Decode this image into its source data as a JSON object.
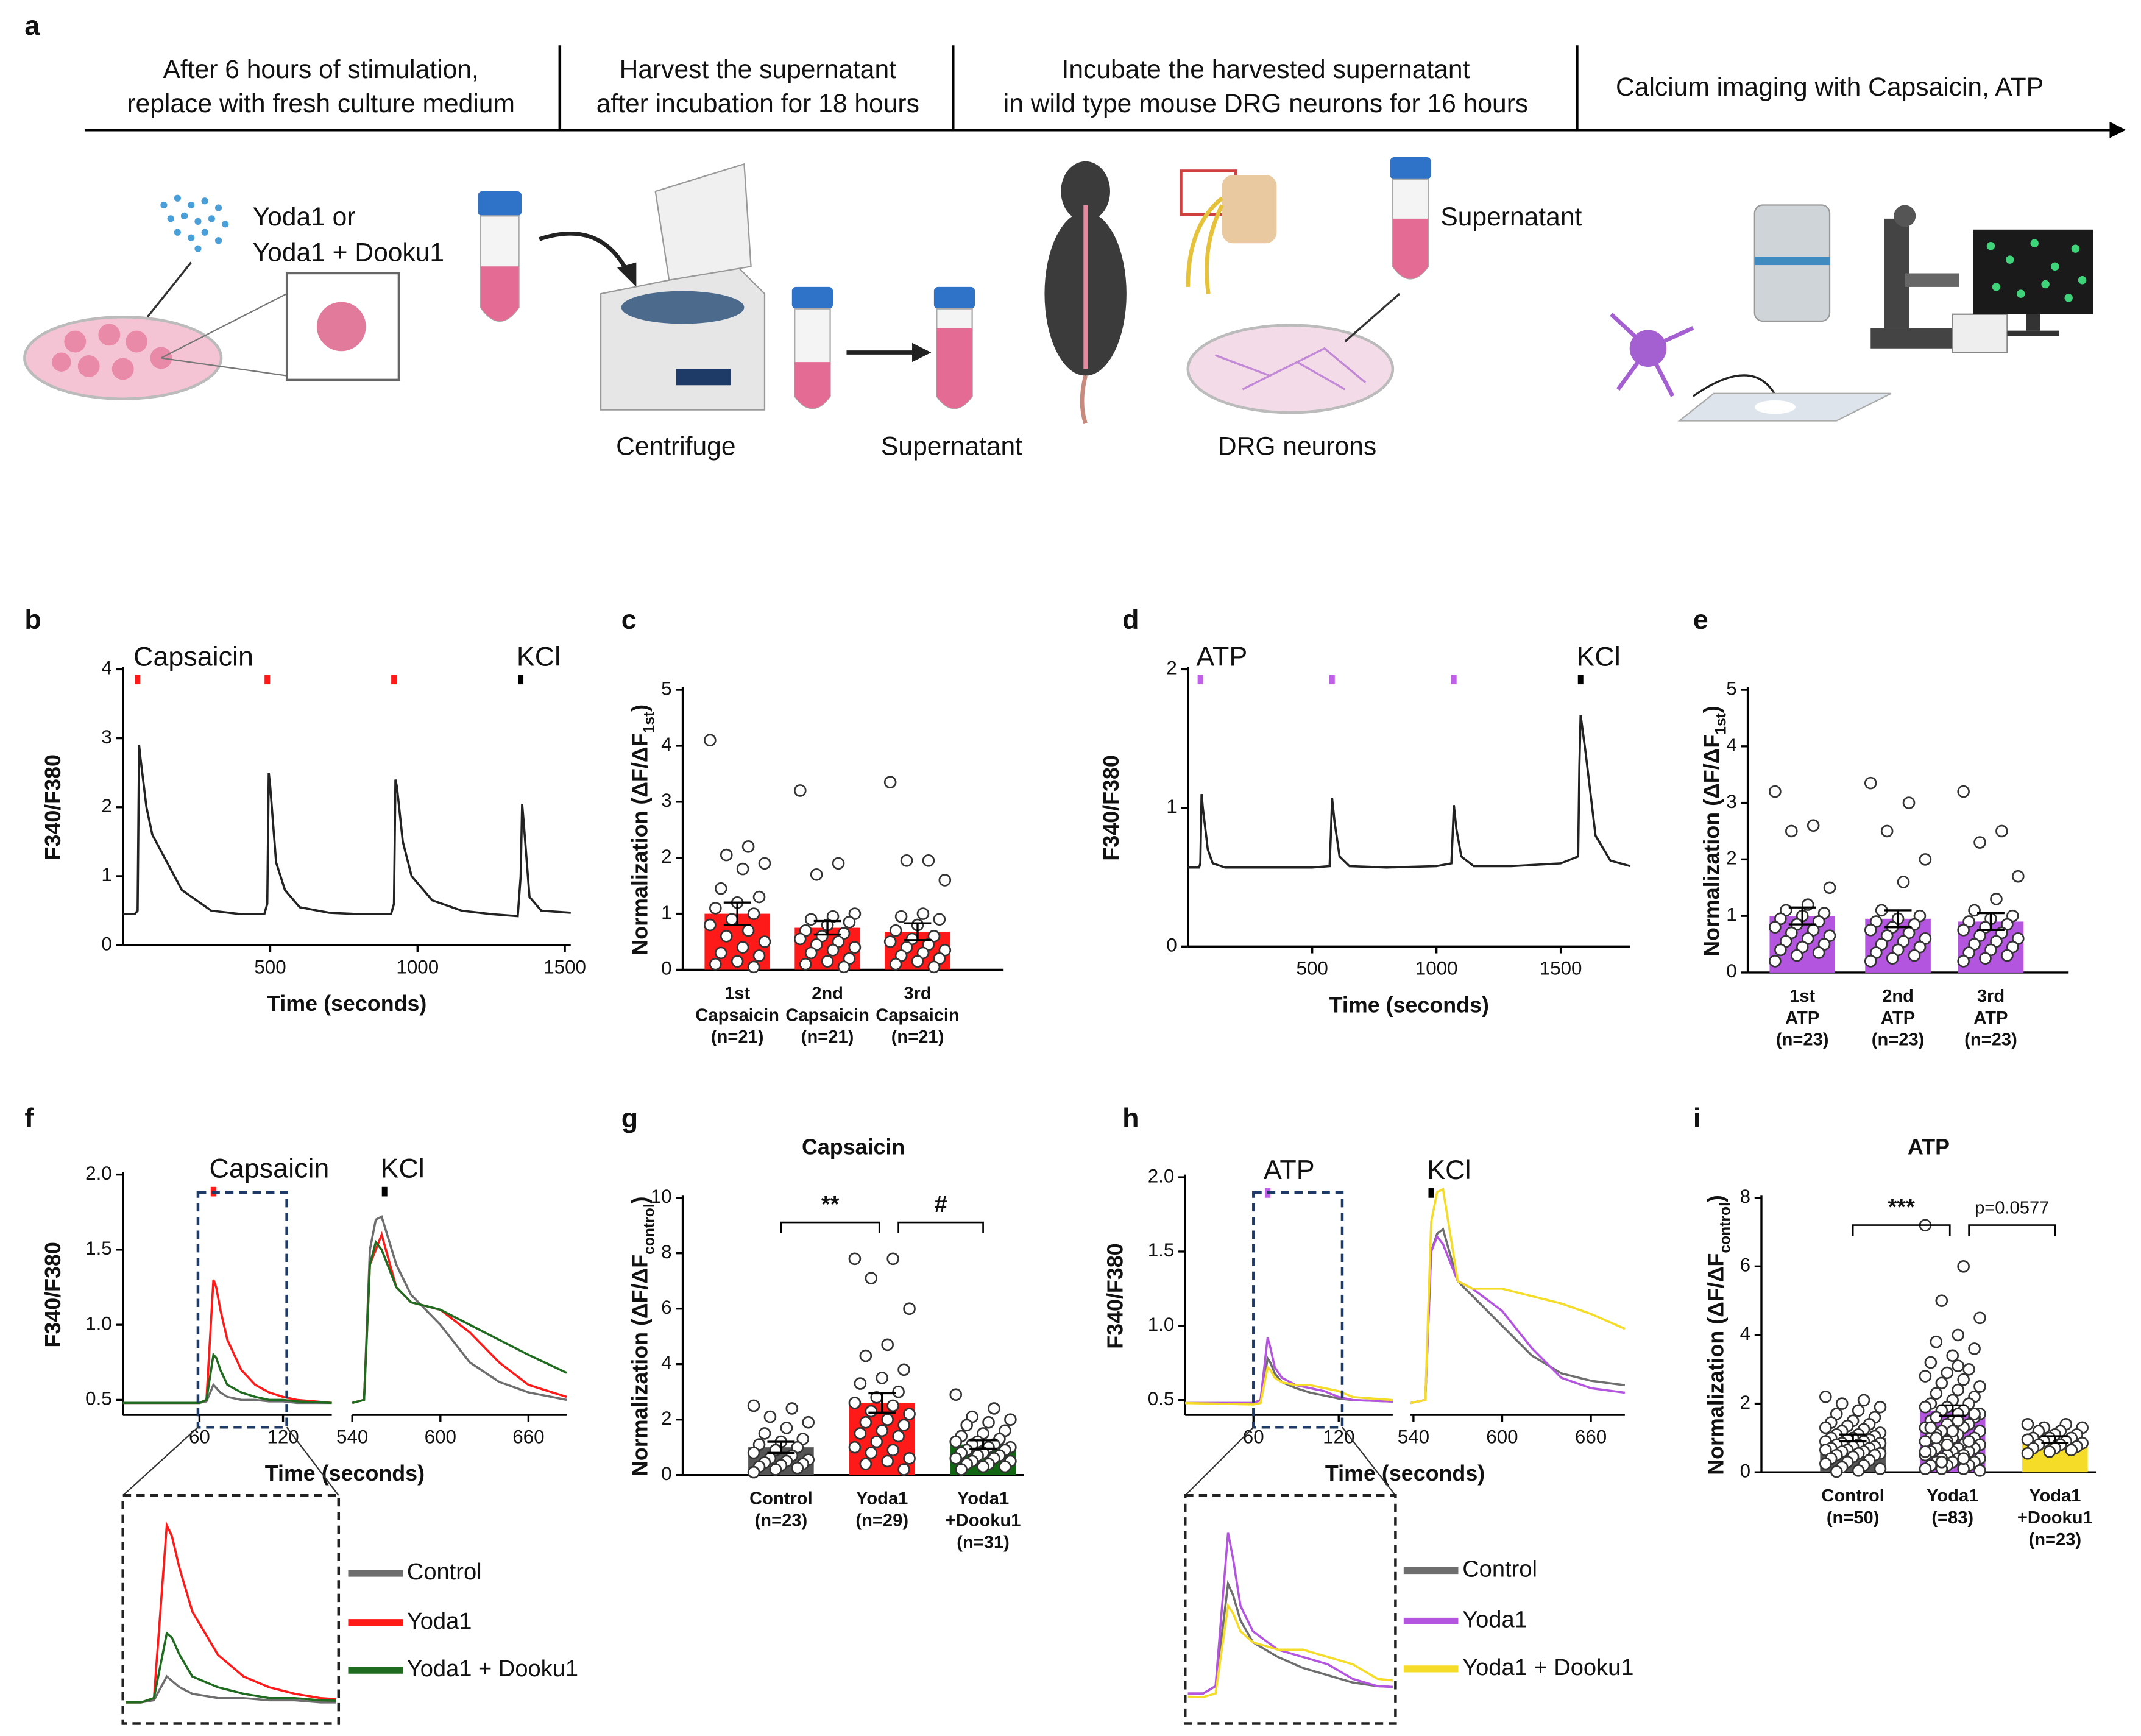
{
  "workflow": {
    "panel": "a",
    "steps": [
      [
        "After 6 hours of stimulation,",
        "replace with fresh culture medium"
      ],
      [
        "Harvest the supernatant",
        "after incubation for 18 hours"
      ],
      [
        "Incubate the harvested supernatant",
        "in wild type mouse DRG neurons for 16 hours"
      ],
      [
        "Calcium imaging with Capsaicin, ATP"
      ]
    ],
    "labels": [
      "Yoda1 or",
      "Yoda1 + Dooku1",
      "Centrifuge",
      "Supernatant",
      "Supernatant",
      "DRG neurons"
    ]
  },
  "chart_data": [
    {
      "type": "line",
      "panel": "b",
      "ylabel": "F340/F380",
      "xlabel": "Time (seconds)",
      "x": [
        0,
        40,
        50,
        55,
        60,
        80,
        100,
        150,
        200,
        300,
        400,
        480,
        490,
        495,
        500,
        520,
        550,
        600,
        700,
        800,
        910,
        920,
        925,
        930,
        950,
        980,
        1050,
        1150,
        1250,
        1340,
        1350,
        1355,
        1360,
        1380,
        1420,
        1520
      ],
      "series": [
        {
          "color": "#222222",
          "values": [
            0.45,
            0.45,
            0.5,
            2.9,
            2.7,
            2.0,
            1.6,
            1.2,
            0.8,
            0.5,
            0.45,
            0.45,
            0.6,
            2.5,
            2.3,
            1.2,
            0.8,
            0.55,
            0.47,
            0.45,
            0.45,
            0.6,
            2.4,
            2.3,
            1.5,
            1.0,
            0.65,
            0.5,
            0.45,
            0.42,
            1.0,
            2.05,
            1.8,
            0.7,
            0.5,
            0.47
          ]
        }
      ],
      "xlim": [
        0,
        1520
      ],
      "xticks": [
        500,
        1000,
        1500
      ],
      "ylim": [
        0,
        4
      ],
      "yticks": [
        0,
        1,
        2,
        3,
        4
      ],
      "stimuli": [
        {
          "label": "Capsaicin",
          "color": "#ff1a1a",
          "x": [
            50,
            490,
            920
          ]
        },
        {
          "label": "KCl",
          "color": "#000000",
          "x": [
            1350
          ]
        }
      ]
    },
    {
      "type": "bar",
      "panel": "c",
      "ylabel": [
        "Normalization (ΔF/ΔF",
        "1st",
        ")"
      ],
      "categories": [
        [
          "1st",
          "Capsaicin",
          "(n=21)"
        ],
        [
          "2nd",
          "Capsaicin",
          "(n=21)"
        ],
        [
          "3rd",
          "Capsaicin",
          "(n=21)"
        ]
      ],
      "values": [
        1.0,
        0.75,
        0.68
      ],
      "errors": [
        0.2,
        0.12,
        0.15
      ],
      "color": "#ff1a1a",
      "points": [
        [
          4.1,
          2.2,
          2.05,
          1.9,
          1.8,
          1.45,
          1.3,
          1.2,
          1.1,
          1.0,
          0.9,
          0.8,
          0.7,
          0.6,
          0.5,
          0.4,
          0.3,
          0.25,
          0.15,
          0.1,
          0.05
        ],
        [
          3.2,
          1.9,
          1.7,
          1.0,
          0.95,
          0.9,
          0.85,
          0.8,
          0.7,
          0.65,
          0.6,
          0.55,
          0.5,
          0.45,
          0.4,
          0.35,
          0.3,
          0.2,
          0.15,
          0.1,
          0.05
        ],
        [
          3.35,
          1.95,
          1.95,
          1.6,
          1.0,
          0.95,
          0.9,
          0.8,
          0.7,
          0.6,
          0.55,
          0.5,
          0.45,
          0.4,
          0.35,
          0.3,
          0.25,
          0.2,
          0.15,
          0.1,
          0.05
        ]
      ],
      "ylim": [
        0,
        5
      ],
      "yticks": [
        0,
        1,
        2,
        3,
        4,
        5
      ]
    },
    {
      "type": "line",
      "panel": "d",
      "ylabel": "F340/F380",
      "xlabel": "Time (seconds)",
      "x": [
        0,
        45,
        50,
        55,
        60,
        80,
        100,
        150,
        300,
        500,
        570,
        575,
        580,
        590,
        610,
        650,
        800,
        1000,
        1060,
        1065,
        1070,
        1080,
        1100,
        1150,
        1300,
        1500,
        1570,
        1575,
        1580,
        1600,
        1640,
        1700,
        1780
      ],
      "series": [
        {
          "color": "#222222",
          "values": [
            0.57,
            0.57,
            0.6,
            1.1,
            1.0,
            0.7,
            0.6,
            0.57,
            0.57,
            0.57,
            0.58,
            0.8,
            1.07,
            0.9,
            0.65,
            0.58,
            0.57,
            0.58,
            0.6,
            0.8,
            1.02,
            0.85,
            0.65,
            0.58,
            0.58,
            0.6,
            0.65,
            1.3,
            1.67,
            1.4,
            0.8,
            0.62,
            0.58
          ]
        }
      ],
      "xlim": [
        0,
        1780
      ],
      "xticks": [
        500,
        1000,
        1500
      ],
      "ylim": [
        0,
        2
      ],
      "yticks": [
        0,
        1,
        2
      ],
      "stimuli": [
        {
          "label": "ATP",
          "color": "#c060e8",
          "x": [
            50,
            580,
            1070
          ]
        },
        {
          "label": "KCl",
          "color": "#000000",
          "x": [
            1580
          ]
        }
      ]
    },
    {
      "type": "bar",
      "panel": "e",
      "ylabel": [
        "Normalization (ΔF/ΔF",
        "1st",
        ")"
      ],
      "categories": [
        [
          "1st",
          "ATP",
          "(n=23)"
        ],
        [
          "2nd",
          "ATP",
          "(n=23)"
        ],
        [
          "3rd",
          "ATP",
          "(n=23)"
        ]
      ],
      "values": [
        1.0,
        0.95,
        0.9
      ],
      "errors": [
        0.15,
        0.15,
        0.15
      ],
      "color": "#b455e0",
      "points": [
        [
          3.2,
          2.6,
          2.5,
          1.5,
          1.2,
          1.1,
          1.05,
          1.0,
          0.95,
          0.9,
          0.85,
          0.8,
          0.75,
          0.7,
          0.65,
          0.6,
          0.55,
          0.5,
          0.45,
          0.4,
          0.35,
          0.3,
          0.2
        ],
        [
          3.35,
          3.0,
          2.5,
          2.0,
          1.6,
          1.1,
          1.0,
          0.95,
          0.9,
          0.85,
          0.8,
          0.75,
          0.7,
          0.65,
          0.6,
          0.55,
          0.5,
          0.45,
          0.4,
          0.35,
          0.3,
          0.25,
          0.2
        ],
        [
          3.2,
          2.5,
          2.3,
          1.7,
          1.3,
          1.1,
          1.0,
          0.95,
          0.9,
          0.85,
          0.8,
          0.75,
          0.7,
          0.65,
          0.6,
          0.55,
          0.5,
          0.45,
          0.4,
          0.35,
          0.3,
          0.25,
          0.2
        ]
      ],
      "ylim": [
        0,
        5
      ],
      "yticks": [
        0,
        1,
        2,
        3,
        4,
        5
      ]
    },
    {
      "type": "line",
      "panel": "f",
      "ylabel": "F340/F380",
      "xlabel": "Time (seconds)",
      "x": [
        [
          5,
          60,
          65,
          70,
          72,
          75,
          80,
          90,
          100,
          110,
          120,
          130,
          155
        ],
        [
          540,
          548,
          552,
          556,
          560,
          570,
          580,
          600,
          620,
          640,
          660,
          686
        ]
      ],
      "series": [
        {
          "name": "Control",
          "color": "#6e6e6e",
          "values": [
            [
              0.48,
              0.48,
              0.49,
              0.6,
              0.58,
              0.55,
              0.52,
              0.5,
              0.5,
              0.49,
              0.49,
              0.48,
              0.48
            ],
            [
              0.48,
              0.5,
              1.5,
              1.7,
              1.72,
              1.4,
              1.2,
              1.0,
              0.75,
              0.62,
              0.55,
              0.5
            ]
          ]
        },
        {
          "name": "Yoda1",
          "color": "#ff1a1a",
          "values": [
            [
              0.48,
              0.48,
              0.5,
              1.3,
              1.25,
              1.1,
              0.9,
              0.7,
              0.6,
              0.55,
              0.52,
              0.5,
              0.48
            ],
            [
              0.48,
              0.5,
              1.4,
              1.5,
              1.6,
              1.25,
              1.15,
              1.1,
              0.95,
              0.75,
              0.6,
              0.52
            ]
          ]
        },
        {
          "name": "Yoda1 + Dooku1",
          "color": "#1f6b1f",
          "values": [
            [
              0.48,
              0.48,
              0.5,
              0.8,
              0.78,
              0.7,
              0.6,
              0.55,
              0.52,
              0.5,
              0.5,
              0.49,
              0.48
            ],
            [
              0.48,
              0.5,
              1.4,
              1.55,
              1.5,
              1.25,
              1.15,
              1.1,
              1.0,
              0.9,
              0.8,
              0.68
            ]
          ]
        }
      ],
      "xlim": [
        [
          5,
          155
        ],
        [
          540,
          686
        ]
      ],
      "xticks": [
        [
          60,
          120
        ],
        [
          540,
          600,
          660
        ]
      ],
      "ylim": [
        0.4,
        2.0
      ],
      "yticks": [
        0.5,
        {
          "value": 1,
          "label": "1.0"
        },
        1.5,
        {
          "value": 2,
          "label": "2.0"
        }
      ],
      "stimuli": [
        {
          "label": "Capsaicin",
          "color": "#ff1a1a",
          "x": [
            70
          ]
        },
        {
          "label": "KCl",
          "color": "#000000",
          "x": [
            562
          ]
        }
      ]
    },
    {
      "type": "bar",
      "panel": "g",
      "title": "Capsaicin",
      "ylabel": [
        "Normalization (ΔF/ΔF",
        "control",
        ")"
      ],
      "categories": [
        [
          "Control",
          "(n=23)"
        ],
        [
          "Yoda1",
          "(n=29)"
        ],
        [
          "Yoda1",
          "+Dooku1",
          "(n=31)"
        ]
      ],
      "values": [
        1.0,
        2.6,
        1.1
      ],
      "errors": [
        0.2,
        0.35,
        0.15
      ],
      "colors": [
        "#555555",
        "#ff1a1a",
        "#116611"
      ],
      "points": [
        [
          2.5,
          2.4,
          2.1,
          1.9,
          1.7,
          1.5,
          1.3,
          1.2,
          1.1,
          1.0,
          0.9,
          0.8,
          0.7,
          0.6,
          0.55,
          0.5,
          0.45,
          0.4,
          0.35,
          0.3,
          0.25,
          0.2,
          0.1
        ],
        [
          7.8,
          7.8,
          7.1,
          6.0,
          4.7,
          4.3,
          3.8,
          3.5,
          3.3,
          3.0,
          2.8,
          2.6,
          2.5,
          2.3,
          2.2,
          2.0,
          1.9,
          1.8,
          1.6,
          1.5,
          1.4,
          1.2,
          1.0,
          0.9,
          0.8,
          0.6,
          0.5,
          0.4,
          0.2
        ],
        [
          2.9,
          2.4,
          2.1,
          2.0,
          1.9,
          1.8,
          1.6,
          1.5,
          1.4,
          1.3,
          1.2,
          1.2,
          1.1,
          1.1,
          1.0,
          1.0,
          0.9,
          0.9,
          0.8,
          0.8,
          0.7,
          0.7,
          0.6,
          0.6,
          0.5,
          0.5,
          0.4,
          0.4,
          0.3,
          0.3,
          0.2
        ]
      ],
      "significance": [
        "**",
        "#"
      ],
      "ylim": [
        0,
        10
      ],
      "yticks": [
        0,
        2,
        4,
        6,
        8,
        10
      ]
    },
    {
      "type": "line",
      "panel": "h",
      "ylabel": "F340/F380",
      "xlabel": "Time (seconds)",
      "x": [
        [
          12,
          60,
          65,
          70,
          72,
          75,
          80,
          90,
          100,
          110,
          120,
          130,
          158
        ],
        [
          538,
          548,
          552,
          556,
          560,
          570,
          580,
          600,
          620,
          640,
          660,
          683
        ]
      ],
      "series": [
        {
          "name": "Control",
          "color": "#6e6e6e",
          "values": [
            [
              0.48,
              0.48,
              0.5,
              0.78,
              0.75,
              0.68,
              0.62,
              0.58,
              0.55,
              0.53,
              0.51,
              0.5,
              0.49
            ],
            [
              0.48,
              0.5,
              1.5,
              1.62,
              1.65,
              1.3,
              1.2,
              1.0,
              0.8,
              0.68,
              0.63,
              0.6
            ]
          ]
        },
        {
          "name": "Yoda1",
          "color": "#b455e0",
          "values": [
            [
              0.48,
              0.48,
              0.5,
              0.92,
              0.85,
              0.72,
              0.65,
              0.6,
              0.58,
              0.56,
              0.52,
              0.5,
              0.49
            ],
            [
              0.48,
              0.5,
              1.5,
              1.6,
              1.55,
              1.3,
              1.25,
              1.1,
              0.85,
              0.65,
              0.58,
              0.55
            ]
          ]
        },
        {
          "name": "Yoda1 + Dooku1",
          "color": "#f5dc28",
          "values": [
            [
              0.48,
              0.47,
              0.48,
              0.72,
              0.7,
              0.65,
              0.62,
              0.6,
              0.6,
              0.58,
              0.56,
              0.52,
              0.5
            ],
            [
              0.48,
              0.5,
              1.7,
              1.9,
              1.92,
              1.3,
              1.25,
              1.25,
              1.2,
              1.15,
              1.08,
              0.98
            ]
          ]
        }
      ],
      "xlim": [
        [
          12,
          158
        ],
        [
          538,
          683
        ]
      ],
      "xticks": [
        [
          60,
          120
        ],
        [
          540,
          600,
          660
        ]
      ],
      "ylim": [
        0.4,
        2.0
      ],
      "yticks": [
        0.5,
        {
          "value": 1,
          "label": "1.0"
        },
        1.5,
        {
          "value": 2,
          "label": "2.0"
        }
      ],
      "stimuli": [
        {
          "label": "ATP",
          "color": "#c060e8",
          "x": [
            70
          ]
        },
        {
          "label": "KCl",
          "color": "#000000",
          "x": [
            552
          ]
        }
      ]
    },
    {
      "type": "bar",
      "panel": "i",
      "title": "ATP",
      "ylabel": [
        "Normalization (ΔF/ΔF",
        "control",
        ")"
      ],
      "categories": [
        [
          "Control",
          "(n=50)"
        ],
        [
          "Yoda1",
          "(=83)"
        ],
        [
          "Yoda1",
          "+Dooku1",
          "(n=23)"
        ]
      ],
      "values": [
        1.0,
        1.8,
        0.95
      ],
      "errors": [
        0.1,
        0.15,
        0.1
      ],
      "colors": [
        "#555555",
        "#b455e0",
        "#f5dc28"
      ],
      "points": [
        [
          2.2,
          2.1,
          2.0,
          1.9,
          1.8,
          1.7,
          1.6,
          1.5,
          1.45,
          1.4,
          1.35,
          1.3,
          1.25,
          1.2,
          1.15,
          1.1,
          1.1,
          1.05,
          1.0,
          1.0,
          0.95,
          0.95,
          0.9,
          0.9,
          0.85,
          0.85,
          0.8,
          0.8,
          0.75,
          0.75,
          0.7,
          0.7,
          0.65,
          0.65,
          0.6,
          0.6,
          0.55,
          0.55,
          0.5,
          0.5,
          0.45,
          0.4,
          0.35,
          0.3,
          0.25,
          0.2,
          0.15,
          0.1,
          0.05,
          0.02
        ],
        [
          7.2,
          6.0,
          5.0,
          4.5,
          4.0,
          3.8,
          3.6,
          3.4,
          3.2,
          3.0,
          2.9,
          2.8,
          2.7,
          2.6,
          2.5,
          2.4,
          2.3,
          2.2,
          2.1,
          2.0,
          2.0,
          1.9,
          1.9,
          1.8,
          1.8,
          1.7,
          1.7,
          1.6,
          1.6,
          1.5,
          1.5,
          1.4,
          1.4,
          1.3,
          1.3,
          1.2,
          1.2,
          1.1,
          1.1,
          1.0,
          1.0,
          1.0,
          0.9,
          0.9,
          0.9,
          0.8,
          0.8,
          0.8,
          0.7,
          0.7,
          0.7,
          0.6,
          0.6,
          0.6,
          0.5,
          0.5,
          0.5,
          0.4,
          0.4,
          0.4,
          0.3,
          0.3,
          0.3,
          0.2,
          0.2,
          0.2,
          0.1,
          0.1,
          0.1,
          0.05,
          1.5,
          1.6,
          1.7,
          1.2,
          1.3,
          0.9,
          0.8,
          0.6,
          0.4,
          0.3,
          2.5,
          3.1,
          1.0
        ],
        [
          1.4,
          1.4,
          1.3,
          1.3,
          1.2,
          1.2,
          1.1,
          1.1,
          1.0,
          1.0,
          1.0,
          0.95,
          0.9,
          0.9,
          0.85,
          0.8,
          0.8,
          0.75,
          0.7,
          0.7,
          0.65,
          0.6,
          0.55
        ]
      ],
      "significance": [
        "***",
        "p=0.0577"
      ],
      "ylim": [
        0,
        8
      ],
      "yticks": [
        0,
        2,
        4,
        6,
        8
      ]
    }
  ]
}
